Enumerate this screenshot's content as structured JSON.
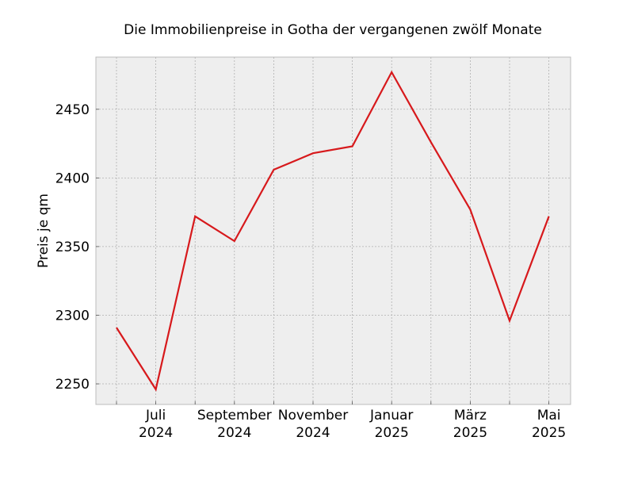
{
  "chart_data": {
    "type": "line",
    "title": "Die Immobilienpreise in Gotha der vergangenen zwölf Monate",
    "xlabel": "",
    "ylabel": "Preis je qm",
    "x": [
      "2024-06",
      "2024-07",
      "2024-08",
      "2024-09",
      "2024-10",
      "2024-11",
      "2024-12",
      "2025-01",
      "2025-02",
      "2025-03",
      "2025-04",
      "2025-05"
    ],
    "x_tick_labels": [
      {
        "x": "2024-07",
        "line1": "Juli",
        "line2": "2024"
      },
      {
        "x": "2024-09",
        "line1": "September",
        "line2": "2024"
      },
      {
        "x": "2024-11",
        "line1": "November",
        "line2": "2024"
      },
      {
        "x": "2025-01",
        "line1": "Januar",
        "line2": "2025"
      },
      {
        "x": "2025-03",
        "line1": "März",
        "line2": "2025"
      },
      {
        "x": "2025-05",
        "line1": "Mai",
        "line2": "2025"
      }
    ],
    "series": [
      {
        "values": [
          2291,
          2246,
          2372,
          2354,
          2406,
          2418,
          2423,
          2477,
          2426,
          2377,
          2296,
          2372
        ]
      }
    ],
    "ylim": [
      2235,
      2488
    ],
    "yticks": [
      2250,
      2300,
      2350,
      2400,
      2450
    ],
    "grid": true,
    "colors": {
      "line": "#d7191c",
      "plot_background": "#eeeeee",
      "grid": "#b0b0b0",
      "frame": "#bcbcbc"
    }
  }
}
